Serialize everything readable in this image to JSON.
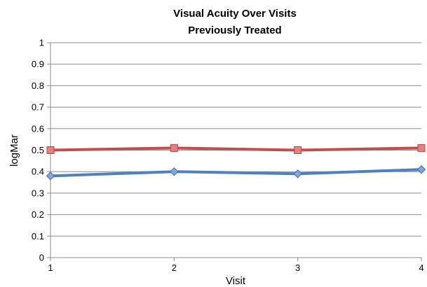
{
  "chart_data": {
    "type": "line",
    "title": [
      "Visual Acuity Over Visits",
      "Previously Treated"
    ],
    "xlabel": "Visit",
    "ylabel": "logMar",
    "x": [
      1,
      2,
      3,
      4
    ],
    "xlim": [
      1,
      4
    ],
    "ylim": [
      0,
      1
    ],
    "yticks": [
      0,
      0.1,
      0.2,
      0.3,
      0.4,
      0.5,
      0.6,
      0.7,
      0.8,
      0.9,
      1
    ],
    "grid": true,
    "legend": "none",
    "series": [
      {
        "values": [
          0.5,
          0.51,
          0.5,
          0.51
        ],
        "color": "#c0504d",
        "marker": "square"
      },
      {
        "values": [
          0.38,
          0.4,
          0.39,
          0.41
        ],
        "color": "#4f81bd",
        "marker": "diamond"
      }
    ]
  }
}
